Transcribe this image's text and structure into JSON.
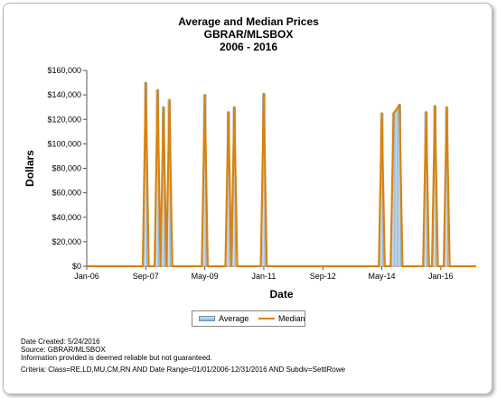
{
  "chart_data": {
    "type": "bar",
    "title": "Average and Median Prices",
    "subtitle_lines": [
      "GBRAR/MLSBOX",
      "2006 - 2016"
    ],
    "xlabel": "Date",
    "ylabel": "Dollars",
    "x_ticks": [
      "Jan-06",
      "Sep-07",
      "May-09",
      "Jan-11",
      "Sep-12",
      "May-14",
      "Jan-16"
    ],
    "y_ticks": [
      "$0",
      "$20,000",
      "$40,000",
      "$60,000",
      "$80,000",
      "$100,000",
      "$120,000",
      "$140,000",
      "$160,000"
    ],
    "ylim": [
      0,
      160000
    ],
    "xlim": [
      "2006-01",
      "2016-12"
    ],
    "grid": false,
    "legend_position": "bottom",
    "series": [
      {
        "name": "Average",
        "style": "bars",
        "color": "#a9c6e2",
        "points": [
          {
            "x": "2007-09",
            "y": 150000
          },
          {
            "x": "2008-01",
            "y": 144000
          },
          {
            "x": "2008-03",
            "y": 130000
          },
          {
            "x": "2008-05",
            "y": 136000
          },
          {
            "x": "2009-05",
            "y": 140000
          },
          {
            "x": "2010-01",
            "y": 126000
          },
          {
            "x": "2010-03",
            "y": 130000
          },
          {
            "x": "2011-01",
            "y": 141000
          },
          {
            "x": "2014-05",
            "y": 125000
          },
          {
            "x": "2014-09",
            "y": 125000
          },
          {
            "x": "2014-10",
            "y": 128000
          },
          {
            "x": "2014-11",
            "y": 132000
          },
          {
            "x": "2015-08",
            "y": 126000
          },
          {
            "x": "2015-11",
            "y": 131000
          },
          {
            "x": "2016-03",
            "y": 130000
          }
        ]
      },
      {
        "name": "Median",
        "style": "spike-line",
        "color": "#d9830e",
        "points": [
          {
            "x": "2007-09",
            "y": 150000
          },
          {
            "x": "2008-01",
            "y": 144000
          },
          {
            "x": "2008-03",
            "y": 130000
          },
          {
            "x": "2008-05",
            "y": 136000
          },
          {
            "x": "2009-05",
            "y": 140000
          },
          {
            "x": "2010-01",
            "y": 126000
          },
          {
            "x": "2010-03",
            "y": 130000
          },
          {
            "x": "2011-01",
            "y": 141000
          },
          {
            "x": "2014-05",
            "y": 125000
          },
          {
            "x": "2014-09",
            "y": 125000
          },
          {
            "x": "2014-10",
            "y": 128000
          },
          {
            "x": "2014-11",
            "y": 132000
          },
          {
            "x": "2015-08",
            "y": 126000
          },
          {
            "x": "2015-11",
            "y": 131000
          },
          {
            "x": "2016-03",
            "y": 130000
          }
        ]
      }
    ]
  },
  "legend": {
    "average_label": "Average",
    "median_label": "Median"
  },
  "footer": {
    "date_created": "Date Created: 5/24/2016",
    "source": "Source: GBRAR/MLSBOX",
    "disclaimer": "Information provided is deemed reliable but not guaranteed.",
    "criteria": "Criteria: Class=RE,LD,MU,CM,RN AND Date Range=01/01/2006-12/31/2016 AND Subdiv=SettlRowe"
  }
}
